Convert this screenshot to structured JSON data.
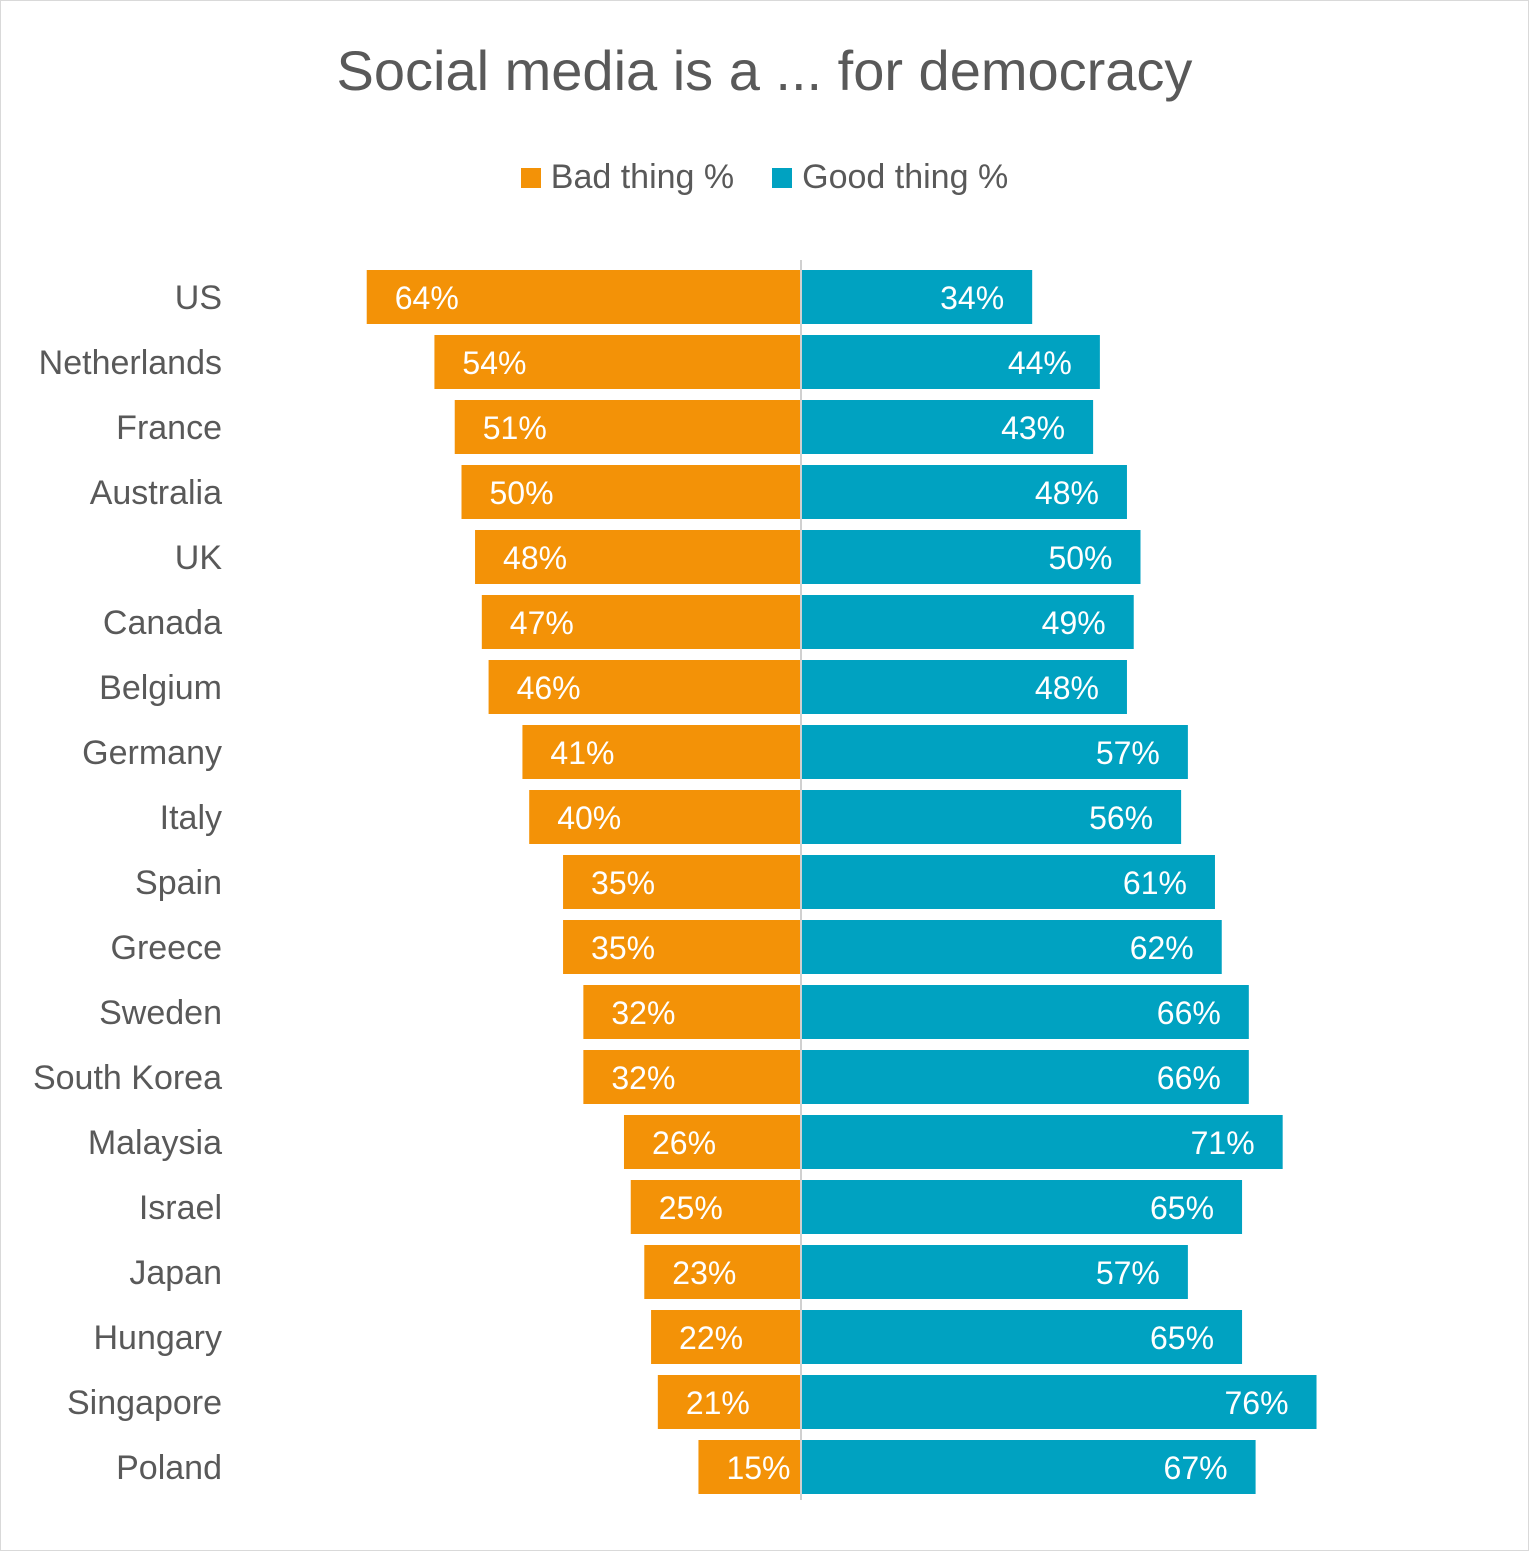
{
  "chart_data": {
    "type": "bar",
    "orientation": "horizontal-diverging",
    "title": "Social media is a ... for democracy",
    "legend_position": "top",
    "categories": [
      "US",
      "Netherlands",
      "France",
      "Australia",
      "UK",
      "Canada",
      "Belgium",
      "Germany",
      "Italy",
      "Spain",
      "Greece",
      "Sweden",
      "South Korea",
      "Malaysia",
      "Israel",
      "Japan",
      "Hungary",
      "Singapore",
      "Poland"
    ],
    "series": [
      {
        "name": "Bad thing %",
        "color": "#f39207",
        "values": [
          64,
          54,
          51,
          50,
          48,
          47,
          46,
          41,
          40,
          35,
          35,
          32,
          32,
          26,
          25,
          23,
          22,
          21,
          15
        ],
        "labels": [
          "64%",
          "54%",
          "51%",
          "50%",
          "48%",
          "47%",
          "46%",
          "41%",
          "40%",
          "35%",
          "35%",
          "32%",
          "32%",
          "26%",
          "25%",
          "23%",
          "22%",
          "21%",
          "15%"
        ]
      },
      {
        "name": "Good thing %",
        "color": "#00a2c1",
        "values": [
          34,
          44,
          43,
          48,
          50,
          49,
          48,
          57,
          56,
          61,
          62,
          66,
          66,
          71,
          65,
          57,
          65,
          76,
          67
        ],
        "labels": [
          "34%",
          "44%",
          "43%",
          "48%",
          "50%",
          "49%",
          "48%",
          "57%",
          "56%",
          "61%",
          "62%",
          "66%",
          "66%",
          "71%",
          "65%",
          "57%",
          "65%",
          "76%",
          "67%"
        ]
      }
    ],
    "grid": false
  }
}
